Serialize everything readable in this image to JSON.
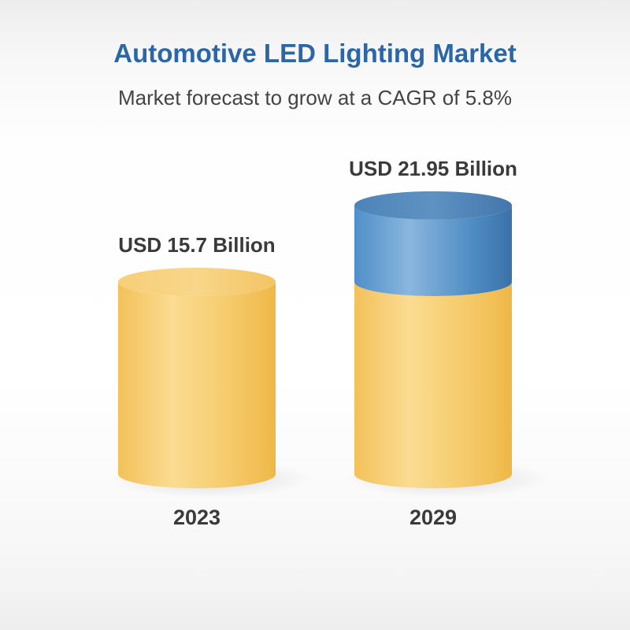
{
  "title": "Automotive LED Lighting Market",
  "subtitle": "Market forecast to grow at a CAGR of 5.8%",
  "colors": {
    "title": "#2b66a6",
    "base_cylinder": "#f4c563",
    "growth_cylinder": "#4a86bf",
    "label_text": "#3a3a3a"
  },
  "chart_data": {
    "type": "bar",
    "style": "3d-cylinder",
    "title": "Automotive LED Lighting Market",
    "subtitle": "Market forecast to grow at a CAGR of 5.8%",
    "categories": [
      "2023",
      "2029"
    ],
    "values": [
      15.7,
      21.95
    ],
    "value_labels": [
      "USD 15.7 Billion",
      "USD 21.95 Billion"
    ],
    "unit": "USD Billion",
    "xlabel": "",
    "ylabel": "",
    "grid": false,
    "legend": "none",
    "stack_note": "2029 bar shows the 2023 base in yellow with the growth increment in blue"
  }
}
